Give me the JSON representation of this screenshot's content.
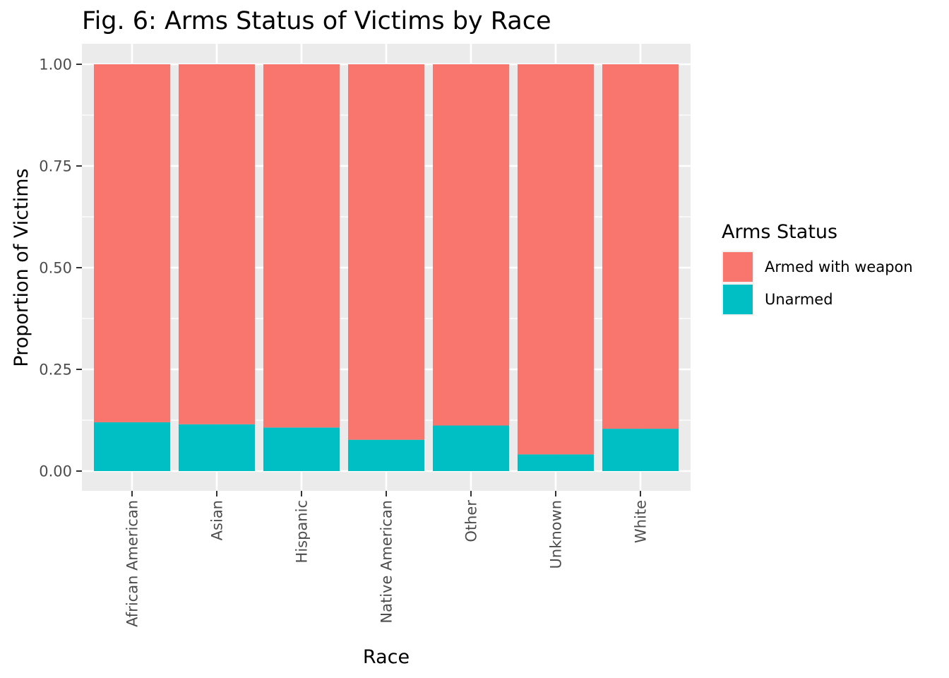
{
  "chart_data": {
    "type": "bar",
    "stacked": true,
    "normalized": true,
    "title": "Fig. 6: Arms Status of Victims by Race",
    "xlabel": "Race",
    "ylabel": "Proportion of Victims",
    "categories": [
      "African American",
      "Asian",
      "Hispanic",
      "Native American",
      "Other",
      "Unknown",
      "White"
    ],
    "series": [
      {
        "name": "Unarmed",
        "color": "#00BFC4",
        "values": [
          0.12,
          0.115,
          0.107,
          0.077,
          0.112,
          0.041,
          0.104
        ]
      },
      {
        "name": "Armed with weapon",
        "color": "#F8766D",
        "values": [
          0.88,
          0.885,
          0.893,
          0.923,
          0.888,
          0.959,
          0.896
        ]
      }
    ],
    "ylim": [
      0,
      1
    ],
    "yticks": [
      "0.00",
      "0.25",
      "0.50",
      "0.75",
      "1.00"
    ],
    "ytick_values": [
      0,
      0.25,
      0.5,
      0.75,
      1.0
    ],
    "grid": true,
    "legend": {
      "title": "Arms Status",
      "placement": "right",
      "items": [
        {
          "label": "Armed with weapon",
          "color": "#F8766D"
        },
        {
          "label": "Unarmed",
          "color": "#00BFC4"
        }
      ]
    },
    "panel_background": "#EBEBEB",
    "grid_color": "#FFFFFF"
  }
}
